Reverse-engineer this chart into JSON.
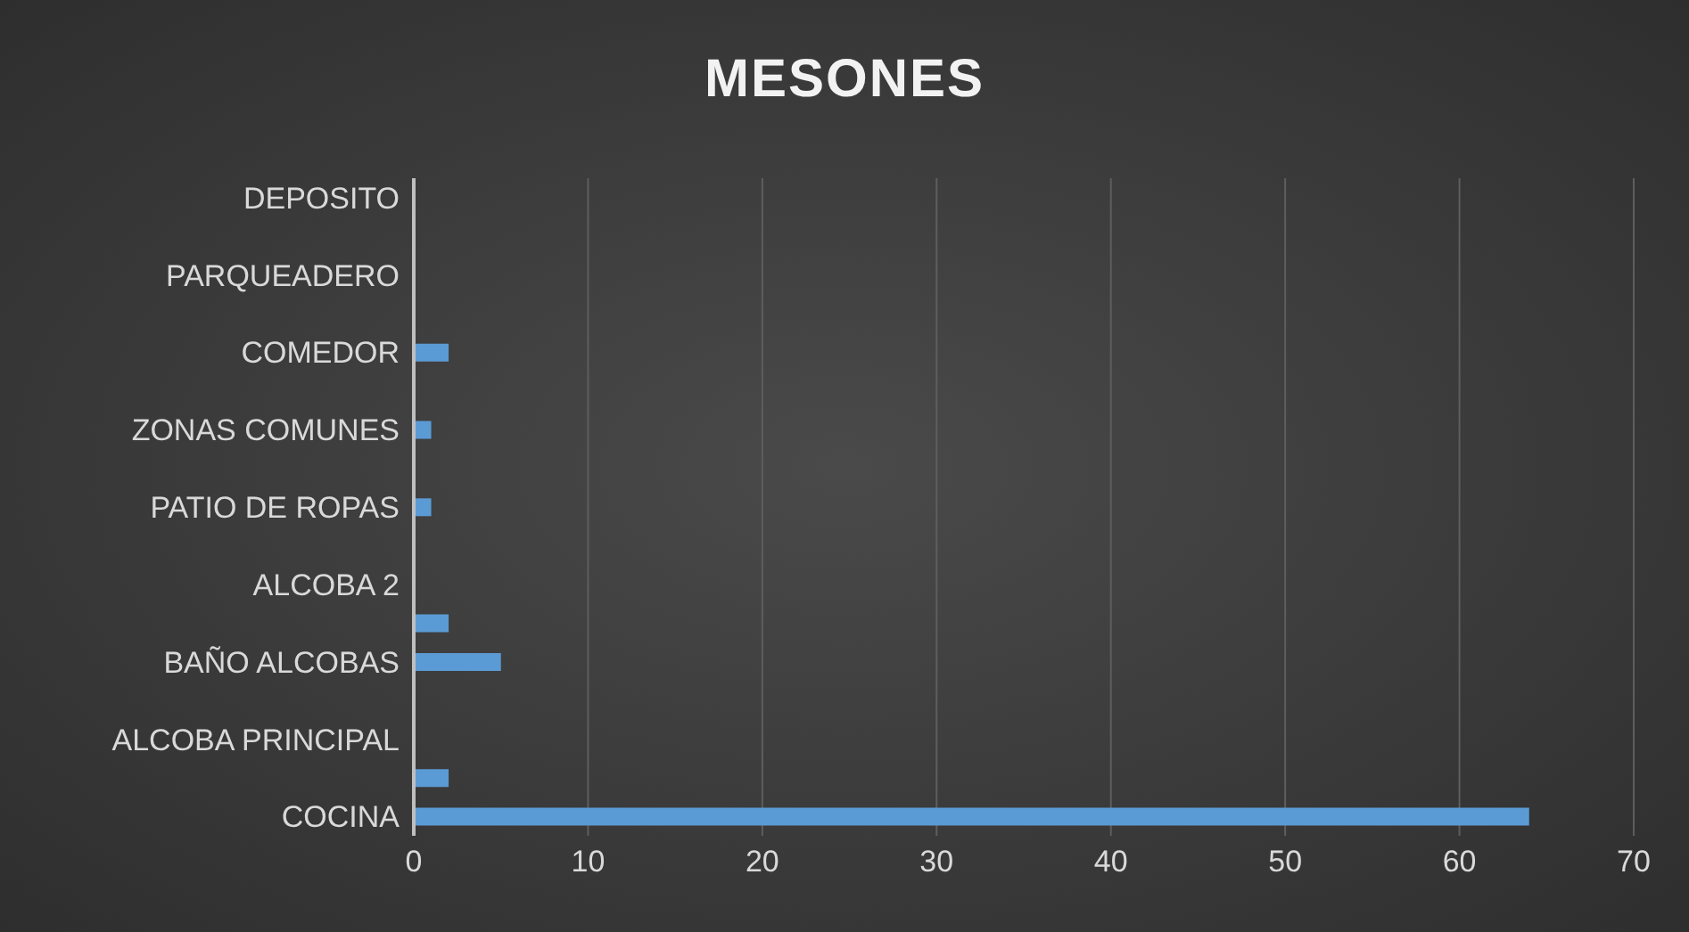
{
  "chart_data": {
    "type": "bar",
    "orientation": "horizontal",
    "title": "MESONES",
    "categories": [
      "DEPOSITO",
      null,
      "PARQUEADERO",
      null,
      "COMEDOR",
      null,
      "ZONAS COMUNES",
      null,
      "PATIO DE ROPAS",
      null,
      "ALCOBA 2",
      null,
      "BAÑO ALCOBAS",
      null,
      "ALCOBA PRINCIPAL",
      null,
      "COCINA"
    ],
    "values": [
      null,
      null,
      null,
      null,
      2,
      null,
      1,
      null,
      1,
      null,
      null,
      2,
      5,
      null,
      null,
      2,
      64
    ],
    "color": "#5b9bd5",
    "xlim": [
      0,
      70
    ],
    "xticks": [
      0,
      10,
      20,
      30,
      40,
      50,
      60,
      70
    ],
    "grid": "x"
  }
}
